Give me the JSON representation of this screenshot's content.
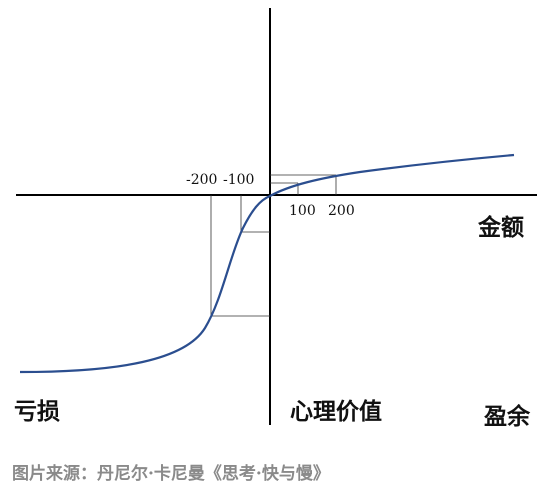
{
  "diagram": {
    "axis_labels": {
      "x_positive": "金额",
      "y_negative_label": "心理价值",
      "x_left": "亏损",
      "x_right": "盈余"
    },
    "ticks": {
      "neg_200": "-200",
      "neg_100": "-100",
      "pos_100": "100",
      "pos_200": "200"
    },
    "curve_color": "#2b4e8f"
  },
  "caption": "图片来源：丹尼尔·卡尼曼《思考·快与慢》"
}
